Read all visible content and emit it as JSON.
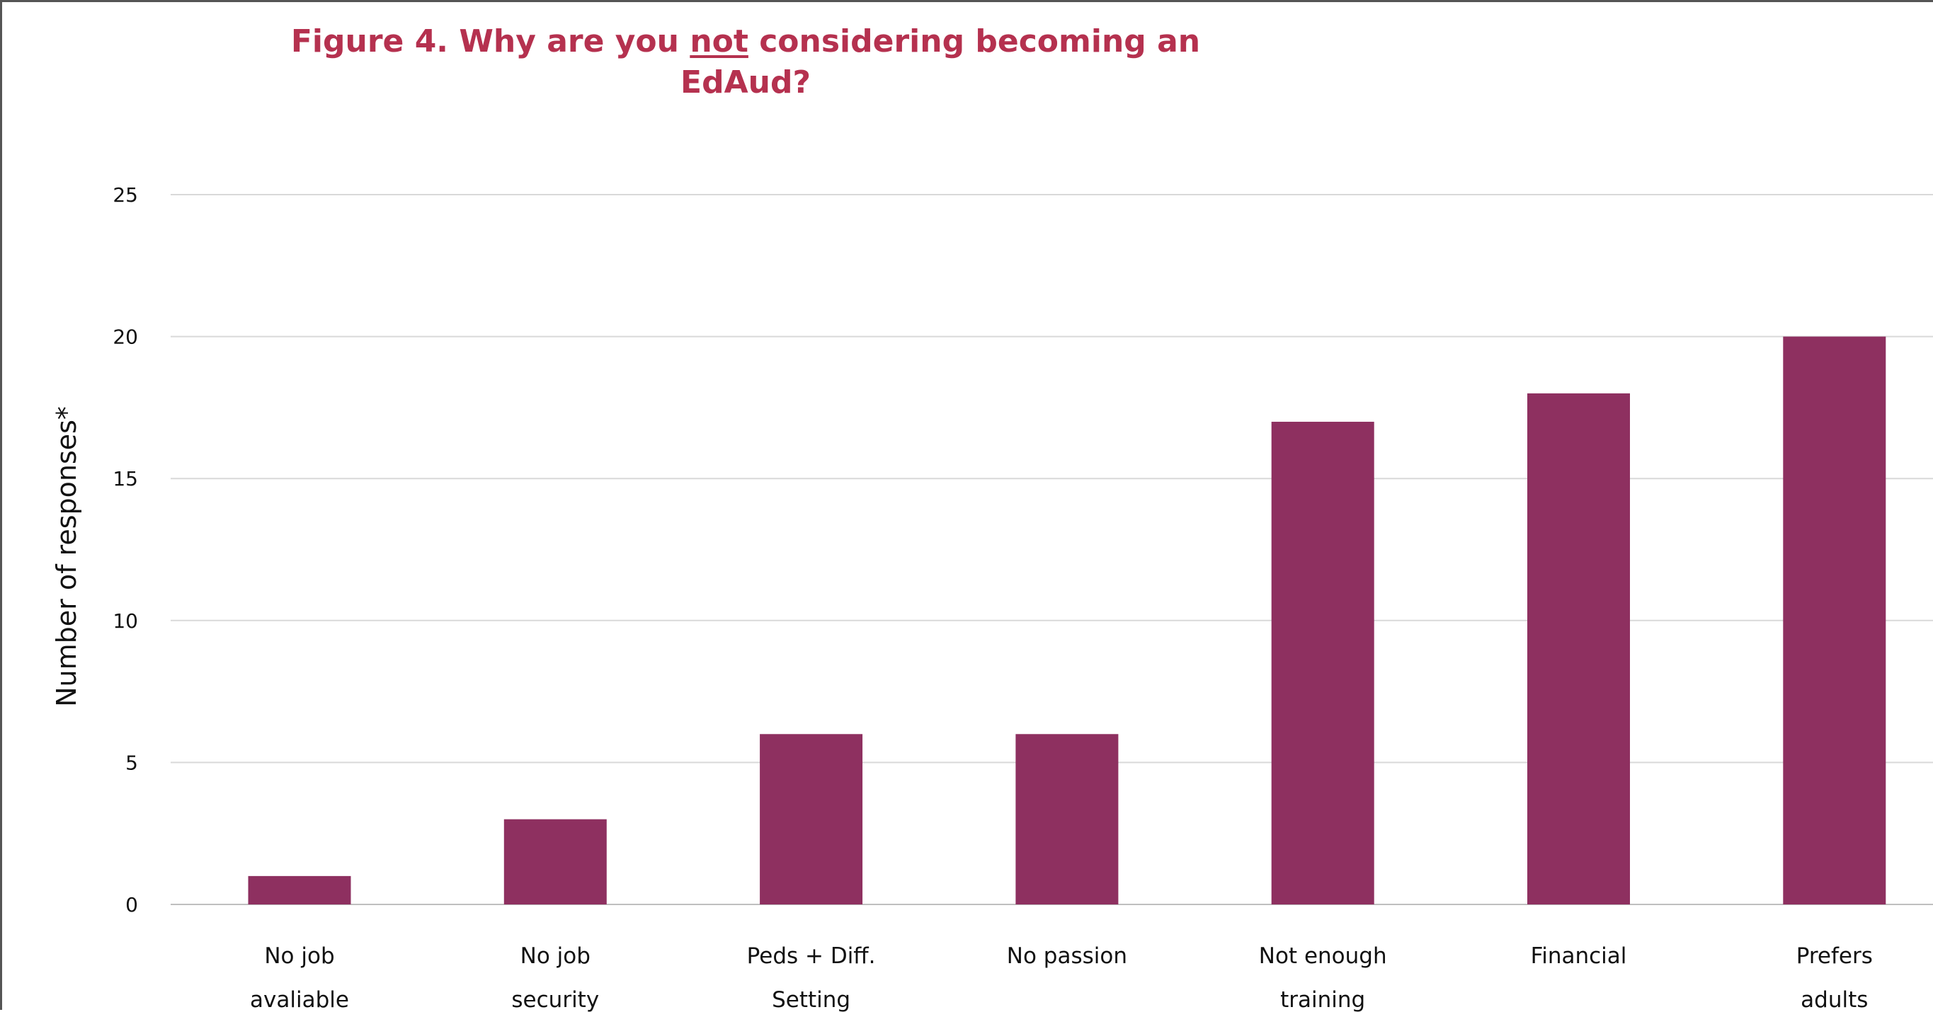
{
  "chart_data": {
    "type": "bar",
    "title": {
      "pre": "Figure 4. Why are you ",
      "emph": "not",
      "post": " considering becoming an",
      "line2": "EdAud?"
    },
    "ylabel": "Number of responses*",
    "xlabel": "",
    "ylim": [
      0,
      25
    ],
    "yticks": [
      "0",
      "5",
      "10",
      "15",
      "20",
      "25"
    ],
    "grid": true,
    "categories": [
      {
        "line1": "No job",
        "line2": "avaliable"
      },
      {
        "line1": "No job",
        "line2": "security"
      },
      {
        "line1": "Peds + Diff.",
        "line2": "Setting"
      },
      {
        "line1": "No passion",
        "line2": ""
      },
      {
        "line1": "Not enough",
        "line2": "training"
      },
      {
        "line1": "Financial",
        "line2": ""
      },
      {
        "line1": "Prefers",
        "line2": "adults"
      }
    ],
    "values": [
      1,
      3,
      6,
      6,
      17,
      18,
      20
    ],
    "bar_color": "#8e3060",
    "title_color": "#b5314f"
  }
}
